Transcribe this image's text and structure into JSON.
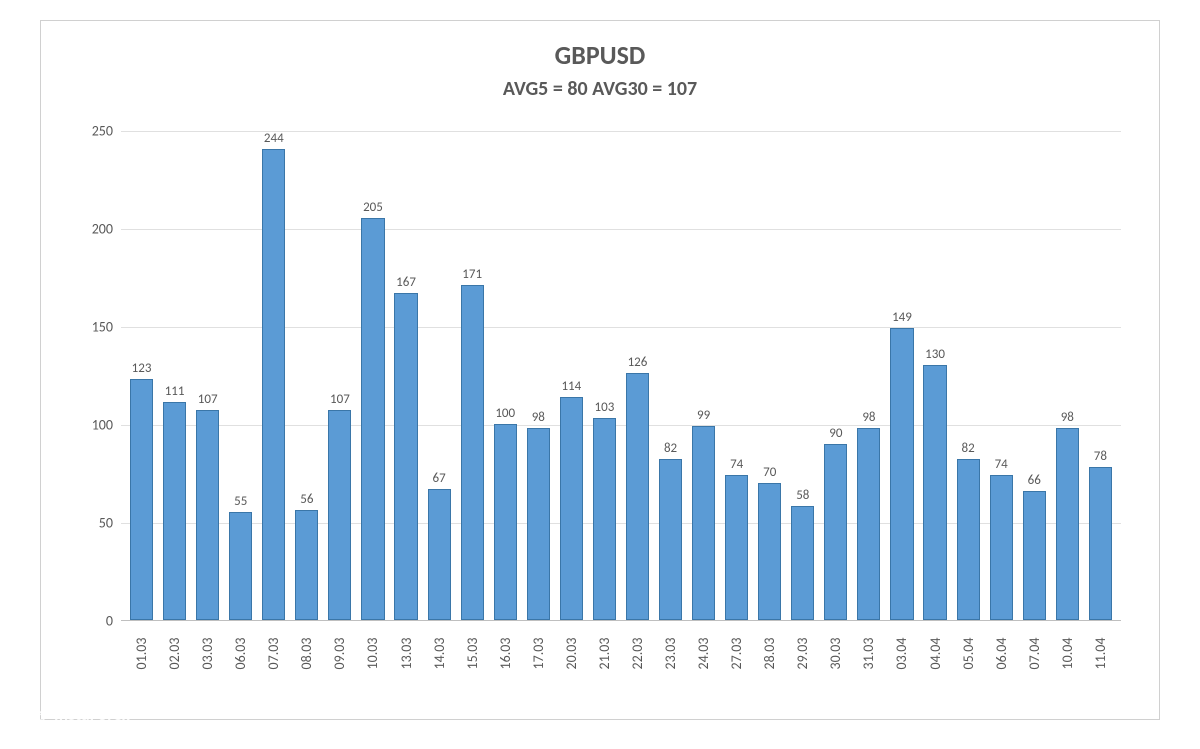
{
  "chart": {
    "type": "bar",
    "title": "GBPUSD",
    "title_fontsize": 26,
    "title_color": "#595959",
    "subtitle": "AVG5 = 80 AVG30 = 107",
    "subtitle_fontsize": 20,
    "subtitle_color": "#595959",
    "background_color": "#ffffff",
    "border_color": "#d0d0d0",
    "grid_color": "#e0e0e0",
    "axis_color": "#bfbfbf",
    "bar_fill": "#5b9bd5",
    "bar_border": "#3a76a8",
    "bar_width": 0.7,
    "ylim": [
      0,
      250
    ],
    "ytick_step": 50,
    "yticks": [
      0,
      50,
      100,
      150,
      200,
      250
    ],
    "label_fontsize": 13,
    "data_label_fontsize": 13,
    "tick_fontsize": 14,
    "x_label_rotation": -90,
    "categories": [
      "01.03",
      "02.03",
      "03.03",
      "06.03",
      "07.03",
      "08.03",
      "09.03",
      "10.03",
      "13.03",
      "14.03",
      "15.03",
      "16.03",
      "17.03",
      "20.03",
      "21.03",
      "22.03",
      "23.03",
      "24.03",
      "27.03",
      "28.03",
      "29.03",
      "30.03",
      "31.03",
      "03.04",
      "04.04",
      "05.04",
      "06.04",
      "07.04",
      "10.04",
      "11.04"
    ],
    "values": [
      123,
      111,
      107,
      55,
      244,
      56,
      107,
      205,
      167,
      67,
      171,
      100,
      98,
      114,
      103,
      126,
      82,
      99,
      74,
      70,
      58,
      90,
      98,
      149,
      130,
      82,
      74,
      66,
      98,
      78
    ]
  },
  "watermark": {
    "main": "InstaForex",
    "sub": "Instant Forex Trading",
    "color": "#ffffff",
    "main_fontsize": 17,
    "sub_fontsize": 8
  }
}
